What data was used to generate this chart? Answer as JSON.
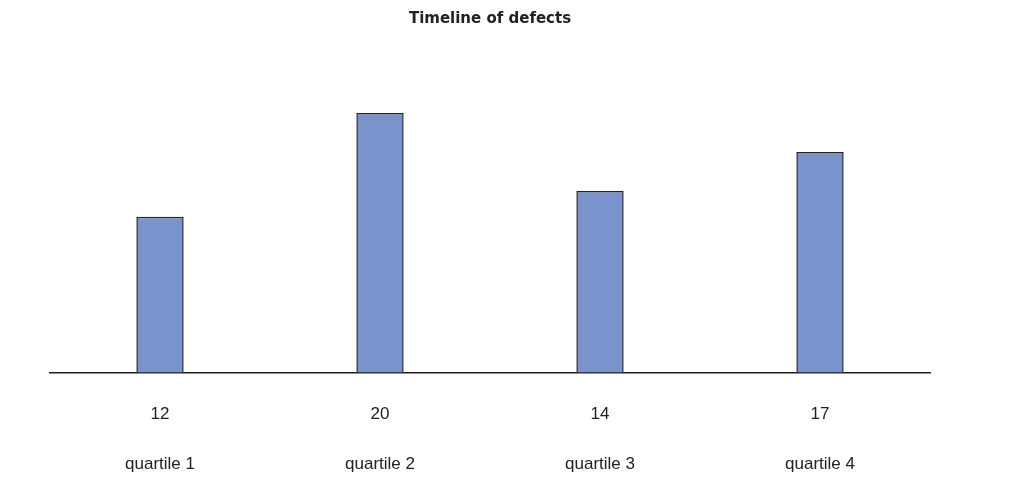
{
  "chart_data": {
    "type": "bar",
    "title": "Timeline of defects",
    "categories": [
      "quartile 1",
      "quartile 2",
      "quartile 3",
      "quartile 4"
    ],
    "values": [
      12,
      20,
      14,
      17
    ],
    "color": "#7b93cc",
    "data_labels": true,
    "tick_labels": "x"
  }
}
